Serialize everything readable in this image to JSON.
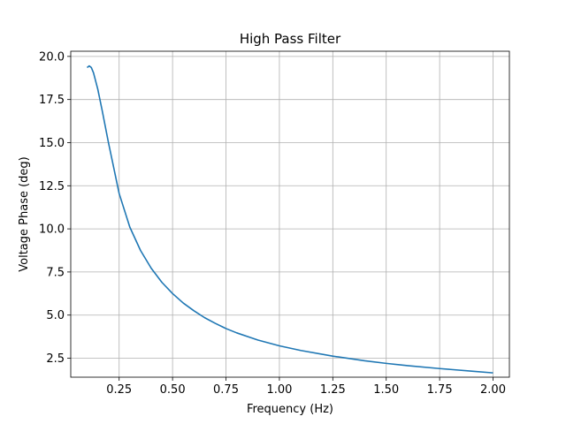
{
  "chart_data": {
    "type": "line",
    "title": "High Pass Filter",
    "xlabel": "Frequency (Hz)",
    "ylabel": "Voltage Phase (deg)",
    "xlim": [
      0.0235,
      2.0765
    ],
    "ylim": [
      1.4,
      20.3
    ],
    "xticks": [
      0.25,
      0.5,
      0.75,
      1.0,
      1.25,
      1.5,
      1.75,
      2.0
    ],
    "xtick_labels": [
      "0.25",
      "0.50",
      "0.75",
      "1.00",
      "1.25",
      "1.50",
      "1.75",
      "2.00"
    ],
    "yticks": [
      2.5,
      5.0,
      7.5,
      10.0,
      12.5,
      15.0,
      17.5,
      20.0
    ],
    "ytick_labels": [
      "2.5",
      "5.0",
      "7.5",
      "10.0",
      "12.5",
      "15.0",
      "17.5",
      "20.0"
    ],
    "grid": true,
    "line_color": "#1f77b4",
    "series": [
      {
        "x": [
          0.1,
          0.11,
          0.12,
          0.13,
          0.15,
          0.17,
          0.2,
          0.25,
          0.3,
          0.35,
          0.4,
          0.45,
          0.5,
          0.55,
          0.6,
          0.65,
          0.7,
          0.75,
          0.8,
          0.9,
          1.0,
          1.1,
          1.25,
          1.4,
          1.5,
          1.6,
          1.75,
          1.9,
          2.0
        ],
        "y": [
          19.35,
          19.45,
          19.35,
          19.05,
          18.1,
          16.9,
          15.0,
          12.05,
          10.1,
          8.75,
          7.72,
          6.9,
          6.25,
          5.7,
          5.25,
          4.85,
          4.52,
          4.22,
          3.97,
          3.55,
          3.22,
          2.95,
          2.62,
          2.35,
          2.2,
          2.07,
          1.9,
          1.75,
          1.65
        ]
      }
    ]
  }
}
